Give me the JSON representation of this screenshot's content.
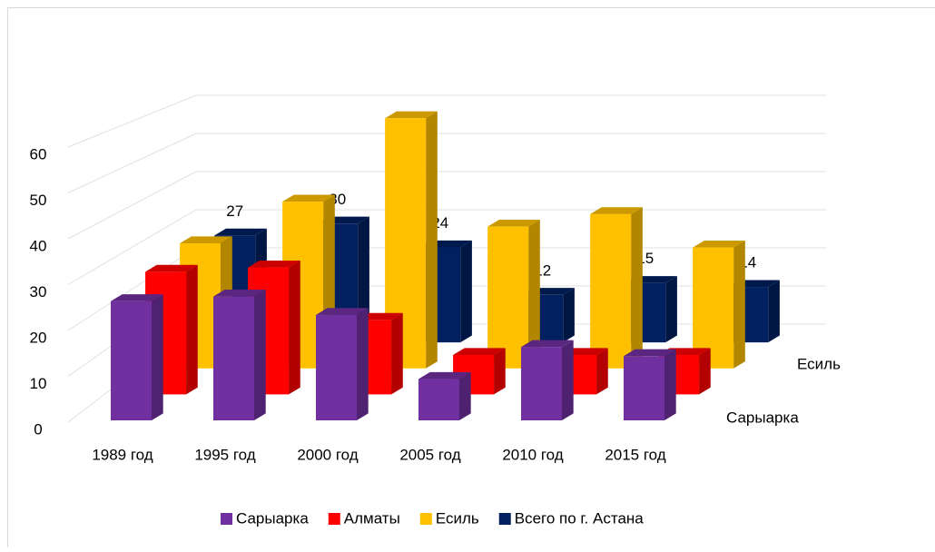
{
  "chart_data": {
    "type": "bar3d",
    "categories": [
      "1989 год",
      "1995 год",
      "2000 год",
      "2005 год",
      "2010 год",
      "2015 год"
    ],
    "series": [
      {
        "name": "Сарыарка",
        "color": "#7030a0",
        "values": [
          26,
          27,
          23,
          9,
          16,
          14
        ]
      },
      {
        "name": "Алматы",
        "color": "#ff0000",
        "values": [
          28,
          29,
          17,
          9,
          9,
          9
        ]
      },
      {
        "name": "Есиль",
        "color": "#ffc000",
        "values": [
          30,
          40,
          60,
          34,
          37,
          29
        ]
      },
      {
        "name": "Всего по г. Астана",
        "color": "#002060",
        "values": [
          27,
          30,
          24,
          12,
          15,
          14
        ]
      }
    ],
    "data_labels_series": 3,
    "ylim": [
      0,
      60
    ],
    "yticks": [
      0,
      10,
      20,
      30,
      40,
      50,
      60
    ],
    "grid": true,
    "legend": "bottom"
  }
}
